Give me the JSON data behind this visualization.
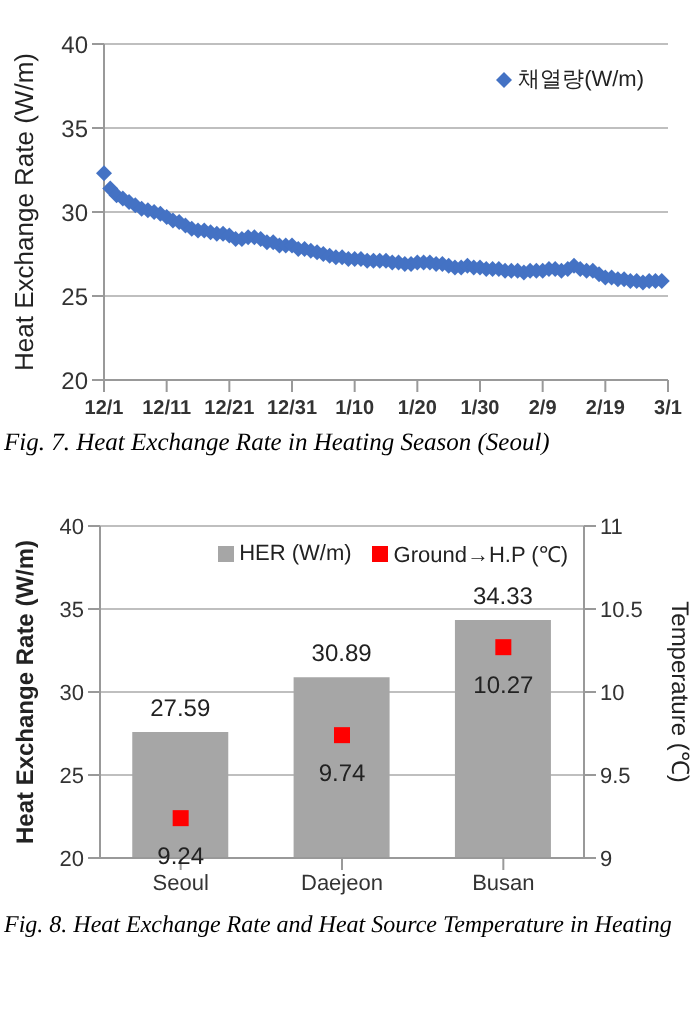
{
  "chart_data": [
    {
      "type": "scatter",
      "ylabel": "Heat Exchange Rate (W/m)",
      "annotations": [
        "Fig. 7. Heat Exchange Rate in Heating Season (Seoul)"
      ],
      "categories": [
        "12/1",
        null,
        null,
        null,
        null,
        null,
        null,
        null,
        null,
        null,
        "12/11",
        null,
        null,
        null,
        null,
        null,
        null,
        null,
        null,
        null,
        "12/21",
        null,
        null,
        null,
        null,
        null,
        null,
        null,
        null,
        null,
        "12/31",
        null,
        null,
        null,
        null,
        null,
        null,
        null,
        null,
        null,
        "1/10",
        null,
        null,
        null,
        null,
        null,
        null,
        null,
        null,
        null,
        "1/20",
        null,
        null,
        null,
        null,
        null,
        null,
        null,
        null,
        null,
        "1/30",
        null,
        null,
        null,
        null,
        null,
        null,
        null,
        null,
        null,
        "2/9",
        null,
        null,
        null,
        null,
        null,
        null,
        null,
        null,
        null,
        "2/19",
        null,
        null,
        null,
        null,
        null,
        null,
        null,
        null,
        null,
        "3/1"
      ],
      "series": [
        {
          "name": "채열량(W/m)",
          "color": "#4472c4",
          "values": [
            32.3,
            31.4,
            31.0,
            30.8,
            30.6,
            30.4,
            30.2,
            30.1,
            30.0,
            29.9,
            29.7,
            29.5,
            29.4,
            29.2,
            29.0,
            28.9,
            28.9,
            28.8,
            28.7,
            28.7,
            28.6,
            28.4,
            28.4,
            28.5,
            28.5,
            28.4,
            28.2,
            28.2,
            28.0,
            28.0,
            28.0,
            27.8,
            27.8,
            27.7,
            27.6,
            27.5,
            27.4,
            27.3,
            27.3,
            27.2,
            27.2,
            27.2,
            27.1,
            27.1,
            27.1,
            27.1,
            27.0,
            27.0,
            26.9,
            26.9,
            27.0,
            27.0,
            27.0,
            26.9,
            26.9,
            26.8,
            26.7,
            26.7,
            26.8,
            26.7,
            26.7,
            26.6,
            26.6,
            26.6,
            26.5,
            26.5,
            26.5,
            26.4,
            26.5,
            26.5,
            26.5,
            26.6,
            26.6,
            26.5,
            26.6,
            26.8,
            26.6,
            26.5,
            26.5,
            26.3,
            26.1,
            26.1,
            26.0,
            26.0,
            25.9,
            25.9,
            25.8,
            25.9,
            25.9,
            25.9,
            null
          ]
        }
      ],
      "ylim": [
        20,
        40
      ],
      "yticks": [
        20,
        25,
        30,
        35,
        40
      ],
      "grid": "y",
      "legend": "top right",
      "marker": "diamond"
    },
    {
      "type": "bar",
      "ylabel": "Heat  Exchange  Rate  (W/m)",
      "y2label": "Temperature  (℃)",
      "annotations": [
        "Fig. 8. Heat Exchange Rate and Heat Source Temperature in Heating"
      ],
      "categories": [
        "Seoul",
        "Daejeon",
        "Busan"
      ],
      "series": [
        {
          "name": "HER (W/m)",
          "type": "bar",
          "color": "#a6a6a6",
          "values": [
            27.59,
            30.89,
            34.33
          ]
        },
        {
          "name": "Ground→H.P (℃)",
          "type": "scatter",
          "axis": "y2",
          "color": "#ff0000",
          "x": [
            "Seoul",
            "Daejeon",
            "Busan"
          ],
          "values": [
            9.24,
            9.74,
            10.27
          ]
        }
      ],
      "ylim": [
        20,
        40
      ],
      "yticks": [
        20,
        25,
        30,
        35,
        40
      ],
      "y2lim": [
        9,
        11
      ],
      "y2ticks": [
        9,
        9.5,
        10,
        10.5,
        11
      ],
      "grid": "y",
      "legend": "top right",
      "marker": "square",
      "data_labels": true
    }
  ]
}
